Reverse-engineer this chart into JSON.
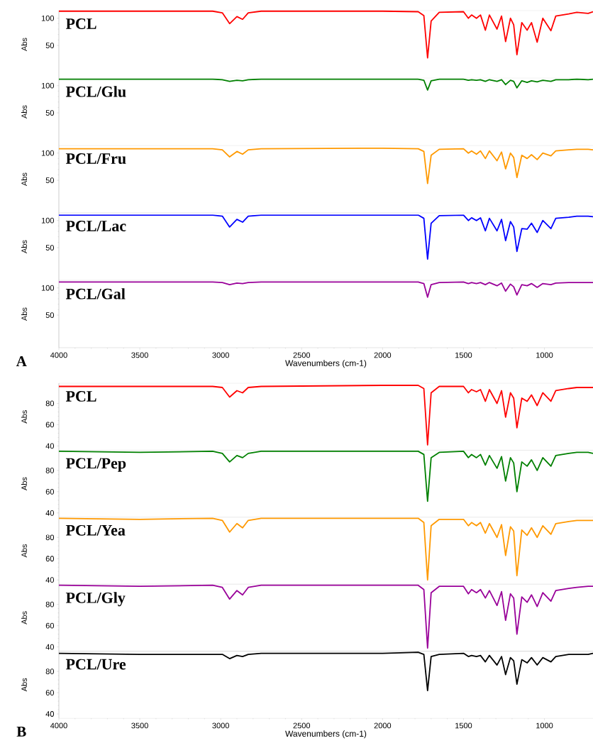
{
  "chart_data": [
    {
      "type": "line",
      "ylabel": "Abs",
      "xlim": [
        4000,
        700
      ],
      "ylim": [
        -10,
        114
      ],
      "yticks": [
        50,
        100
      ],
      "tick_labels": "y",
      "x": [
        4000,
        3500,
        3050,
        2990,
        2945,
        2900,
        2865,
        2830,
        2750,
        2000,
        1780,
        1745,
        1722,
        1700,
        1650,
        1500,
        1470,
        1450,
        1420,
        1395,
        1365,
        1340,
        1293,
        1265,
        1240,
        1210,
        1190,
        1170,
        1140,
        1107,
        1080,
        1045,
        1010,
        960,
        930,
        850,
        800,
        730,
        700
      ],
      "series": [
        {
          "name": "PCL",
          "color": "#ff0000",
          "values": [
            113,
            113,
            113,
            110,
            90,
            103,
            98,
            110,
            113,
            113,
            112,
            105,
            27,
            95,
            111,
            112,
            100,
            106,
            100,
            106,
            78,
            106,
            80,
            104,
            57,
            100,
            88,
            33,
            92,
            78,
            92,
            56,
            100,
            77,
            104,
            108,
            111,
            109,
            112
          ]
        }
      ]
    },
    {
      "type": "line",
      "ylabel": "Abs",
      "xlim": [
        4000,
        700
      ],
      "ylim": [
        -10,
        114
      ],
      "yticks": [
        50,
        100
      ],
      "tick_labels": "y",
      "x": [
        4000,
        3500,
        3050,
        2990,
        2945,
        2900,
        2865,
        2830,
        2750,
        2000,
        1780,
        1745,
        1722,
        1700,
        1650,
        1500,
        1470,
        1450,
        1420,
        1395,
        1365,
        1340,
        1293,
        1265,
        1240,
        1210,
        1190,
        1170,
        1140,
        1107,
        1080,
        1045,
        1010,
        960,
        930,
        850,
        800,
        730,
        700
      ],
      "series": [
        {
          "name": "PCL/Glu",
          "color": "#008000",
          "values": [
            112,
            112,
            112,
            111,
            108,
            110,
            109,
            111,
            112,
            112,
            112,
            110,
            92,
            109,
            112,
            112,
            110,
            111,
            110,
            111,
            108,
            111,
            108,
            111,
            102,
            110,
            108,
            96,
            109,
            106,
            109,
            107,
            110,
            108,
            111,
            111,
            112,
            111,
            112
          ]
        }
      ]
    },
    {
      "type": "line",
      "ylabel": "Abs",
      "xlim": [
        4000,
        700
      ],
      "ylim": [
        -10,
        114
      ],
      "yticks": [
        50,
        100
      ],
      "tick_labels": "y",
      "x": [
        4000,
        3500,
        3050,
        2990,
        2945,
        2900,
        2865,
        2830,
        2750,
        2000,
        1780,
        1745,
        1722,
        1700,
        1650,
        1500,
        1470,
        1450,
        1420,
        1395,
        1365,
        1340,
        1293,
        1265,
        1240,
        1210,
        1190,
        1170,
        1140,
        1107,
        1080,
        1045,
        1010,
        960,
        930,
        850,
        800,
        730,
        700
      ],
      "series": [
        {
          "name": "PCL/Fru",
          "color": "#ff9900",
          "values": [
            108,
            108,
            108,
            106,
            93,
            103,
            98,
            106,
            108,
            109,
            108,
            103,
            44,
            96,
            107,
            108,
            100,
            104,
            98,
            104,
            90,
            104,
            86,
            102,
            71,
            100,
            92,
            55,
            96,
            90,
            97,
            88,
            100,
            95,
            104,
            106,
            107,
            107,
            106
          ]
        }
      ]
    },
    {
      "type": "line",
      "ylabel": "Abs",
      "xlim": [
        4000,
        700
      ],
      "ylim": [
        -10,
        114
      ],
      "yticks": [
        50,
        100
      ],
      "tick_labels": "y",
      "x": [
        4000,
        3500,
        3050,
        2990,
        2945,
        2900,
        2865,
        2830,
        2750,
        2000,
        1780,
        1745,
        1722,
        1700,
        1650,
        1500,
        1470,
        1450,
        1420,
        1395,
        1365,
        1340,
        1293,
        1265,
        1240,
        1210,
        1190,
        1170,
        1140,
        1107,
        1080,
        1045,
        1010,
        960,
        930,
        850,
        800,
        730,
        700
      ],
      "series": [
        {
          "name": "PCL/Lac",
          "color": "#0000ff",
          "values": [
            110,
            110,
            110,
            108,
            88,
            102,
            97,
            108,
            110,
            110,
            110,
            104,
            29,
            95,
            109,
            110,
            100,
            105,
            100,
            105,
            81,
            104,
            81,
            102,
            63,
            98,
            88,
            43,
            85,
            84,
            95,
            78,
            100,
            85,
            104,
            106,
            108,
            108,
            107
          ]
        }
      ]
    },
    {
      "type": "line",
      "ylabel": "Abs",
      "xlabel": "Wavenumbers (cm-1)",
      "annotations": [
        "A"
      ],
      "xlim": [
        4000,
        700
      ],
      "xticks": [
        4000,
        3500,
        3000,
        2500,
        2000,
        1500,
        1000
      ],
      "ylim": [
        -10,
        114
      ],
      "yticks": [
        50,
        100
      ],
      "x": [
        4000,
        3500,
        3050,
        2990,
        2945,
        2900,
        2865,
        2830,
        2750,
        2000,
        1780,
        1745,
        1722,
        1700,
        1650,
        1500,
        1470,
        1450,
        1420,
        1395,
        1365,
        1340,
        1293,
        1265,
        1240,
        1210,
        1190,
        1170,
        1140,
        1107,
        1080,
        1045,
        1010,
        960,
        930,
        850,
        800,
        730,
        700
      ],
      "series": [
        {
          "name": "PCL/Gal",
          "color": "#990099",
          "values": [
            111,
            111,
            111,
            110,
            106,
            109,
            108,
            110,
            111,
            111,
            111,
            108,
            83,
            106,
            110,
            111,
            108,
            110,
            108,
            110,
            106,
            110,
            104,
            109,
            94,
            107,
            102,
            87,
            106,
            104,
            108,
            101,
            108,
            106,
            109,
            110,
            110,
            110,
            110
          ]
        }
      ]
    },
    {
      "type": "line",
      "ylabel": "Abs",
      "xlim": [
        4000,
        700
      ],
      "ylim": [
        36,
        99
      ],
      "yticks": [
        40,
        60,
        80
      ],
      "tick_labels": "y",
      "x": [
        4000,
        3500,
        3050,
        2990,
        2945,
        2900,
        2865,
        2830,
        2750,
        2000,
        1780,
        1745,
        1722,
        1700,
        1650,
        1500,
        1470,
        1450,
        1420,
        1395,
        1365,
        1340,
        1293,
        1265,
        1240,
        1210,
        1190,
        1170,
        1140,
        1107,
        1080,
        1045,
        1010,
        960,
        930,
        850,
        800,
        730,
        700
      ],
      "series": [
        {
          "name": "PCL",
          "color": "#ff0000",
          "values": [
            96,
            96,
            96,
            95,
            86,
            92,
            90,
            95,
            96,
            97,
            97,
            94,
            41,
            90,
            96,
            96,
            90,
            93,
            91,
            93,
            82,
            93,
            80,
            92,
            67,
            90,
            85,
            57,
            85,
            82,
            88,
            78,
            90,
            82,
            92,
            94,
            95,
            95,
            95
          ]
        }
      ]
    },
    {
      "type": "line",
      "ylabel": "Abs",
      "xlim": [
        4000,
        700
      ],
      "ylim": [
        36,
        99
      ],
      "yticks": [
        40,
        60,
        80
      ],
      "tick_labels": "y",
      "x": [
        4000,
        3500,
        3050,
        2990,
        2945,
        2900,
        2865,
        2830,
        2750,
        2000,
        1780,
        1745,
        1722,
        1700,
        1650,
        1500,
        1470,
        1450,
        1420,
        1395,
        1365,
        1340,
        1293,
        1265,
        1240,
        1210,
        1190,
        1170,
        1140,
        1107,
        1080,
        1045,
        1010,
        960,
        930,
        850,
        800,
        730,
        700
      ],
      "series": [
        {
          "name": "PCL/Pep",
          "color": "#008000",
          "values": [
            98,
            97,
            98,
            96,
            88,
            94,
            92,
            96,
            98,
            98,
            98,
            95,
            51,
            92,
            97,
            98,
            92,
            95,
            92,
            95,
            85,
            94,
            82,
            93,
            70,
            92,
            87,
            60,
            88,
            84,
            90,
            80,
            92,
            84,
            94,
            96,
            97,
            97,
            96
          ]
        }
      ]
    },
    {
      "type": "line",
      "ylabel": "Abs",
      "xlim": [
        4000,
        700
      ],
      "ylim": [
        36,
        99
      ],
      "yticks": [
        40,
        60,
        80
      ],
      "tick_labels": "y",
      "x": [
        4000,
        3500,
        3050,
        2990,
        2945,
        2900,
        2865,
        2830,
        2750,
        2000,
        1780,
        1745,
        1722,
        1700,
        1650,
        1500,
        1470,
        1450,
        1420,
        1395,
        1365,
        1340,
        1293,
        1265,
        1240,
        1210,
        1190,
        1170,
        1140,
        1107,
        1080,
        1045,
        1010,
        960,
        930,
        850,
        800,
        730,
        700
      ],
      "series": [
        {
          "name": "PCL/Yea",
          "color": "#ff9900",
          "values": [
            98,
            97,
            98,
            96,
            85,
            93,
            89,
            96,
            98,
            98,
            98,
            94,
            40,
            91,
            97,
            97,
            91,
            94,
            91,
            94,
            84,
            93,
            80,
            92,
            63,
            90,
            86,
            44,
            87,
            82,
            89,
            80,
            91,
            83,
            93,
            95,
            96,
            96,
            96
          ]
        }
      ]
    },
    {
      "type": "line",
      "ylabel": "Abs",
      "xlim": [
        4000,
        700
      ],
      "ylim": [
        36,
        99
      ],
      "yticks": [
        40,
        60,
        80
      ],
      "tick_labels": "y",
      "x": [
        4000,
        3500,
        3050,
        2990,
        2945,
        2900,
        2865,
        2830,
        2750,
        2000,
        1780,
        1745,
        1722,
        1700,
        1650,
        1500,
        1470,
        1450,
        1420,
        1395,
        1365,
        1340,
        1293,
        1265,
        1240,
        1210,
        1190,
        1170,
        1140,
        1107,
        1080,
        1045,
        1010,
        960,
        930,
        850,
        800,
        730,
        700
      ],
      "series": [
        {
          "name": "PCL/Gly",
          "color": "#990099",
          "values": [
            98,
            97,
            98,
            96,
            85,
            93,
            89,
            96,
            98,
            98,
            98,
            94,
            39,
            91,
            97,
            97,
            90,
            94,
            91,
            94,
            86,
            93,
            79,
            92,
            65,
            90,
            86,
            52,
            87,
            82,
            89,
            78,
            91,
            83,
            93,
            95,
            96,
            97,
            97
          ]
        }
      ]
    },
    {
      "type": "line",
      "ylabel": "Abs",
      "xlabel": "Wavenumbers (cm-1)",
      "annotations": [
        "B"
      ],
      "xlim": [
        4000,
        700
      ],
      "xticks": [
        4000,
        3500,
        3000,
        2500,
        2000,
        1500,
        1000
      ],
      "ylim": [
        36,
        99
      ],
      "yticks": [
        40,
        60,
        80
      ],
      "x": [
        4000,
        3500,
        3050,
        2990,
        2945,
        2900,
        2865,
        2830,
        2750,
        2000,
        1780,
        1745,
        1722,
        1700,
        1650,
        1500,
        1470,
        1450,
        1420,
        1395,
        1365,
        1340,
        1293,
        1265,
        1240,
        1210,
        1190,
        1170,
        1140,
        1107,
        1080,
        1045,
        1010,
        960,
        930,
        850,
        800,
        730,
        700
      ],
      "series": [
        {
          "name": "PCL/Ure",
          "color": "#000000",
          "values": [
            97,
            96,
            96,
            96,
            92,
            95,
            94,
            96,
            97,
            97,
            98,
            96,
            62,
            94,
            96,
            97,
            94,
            95,
            94,
            95,
            89,
            95,
            86,
            94,
            77,
            93,
            90,
            68,
            91,
            88,
            93,
            86,
            93,
            89,
            94,
            96,
            96,
            96,
            97
          ]
        }
      ]
    }
  ]
}
